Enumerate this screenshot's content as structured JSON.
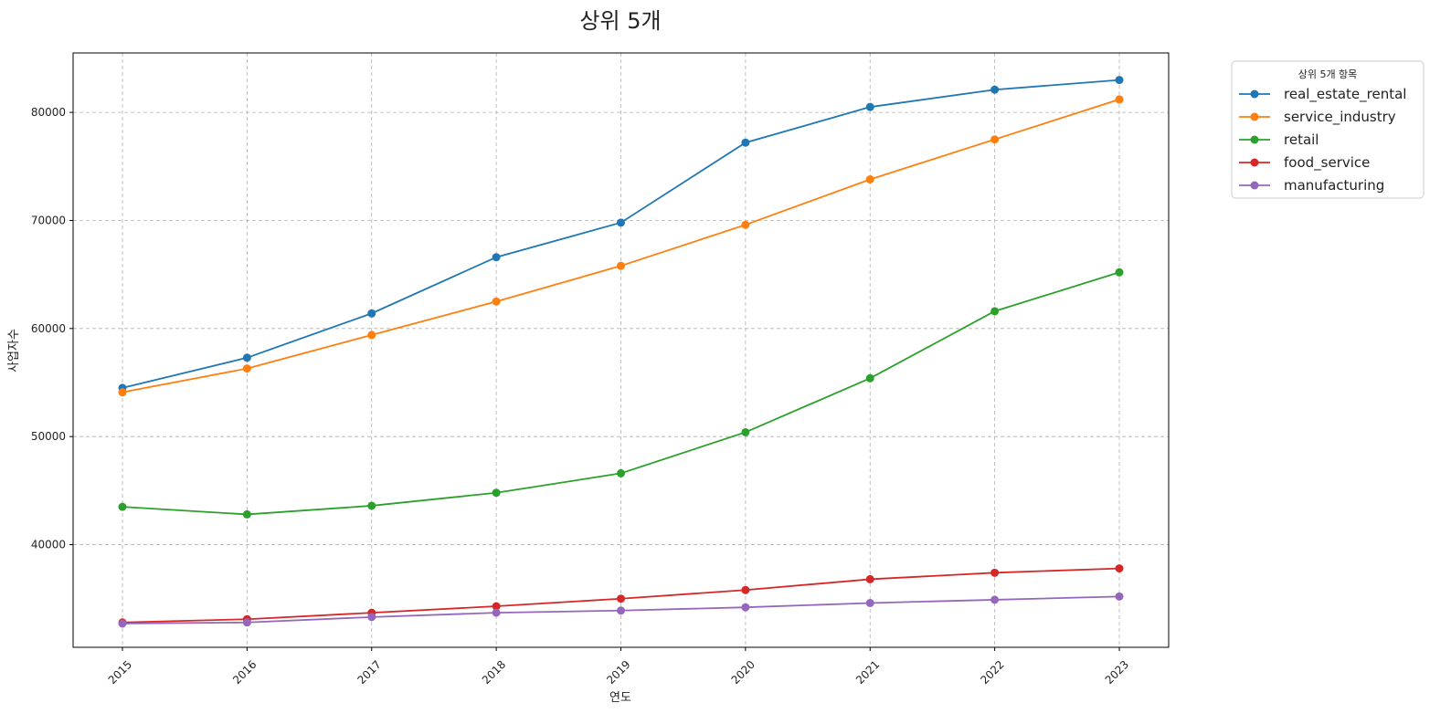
{
  "chart_data": {
    "type": "line",
    "title": "상위 5개",
    "xlabel": "연도",
    "ylabel": "사업자수",
    "x": [
      "2015",
      "2016",
      "2017",
      "2018",
      "2019",
      "2020",
      "2021",
      "2022",
      "2023"
    ],
    "yticks": [
      40000,
      50000,
      60000,
      70000,
      80000
    ],
    "ylim": [
      30500,
      85500
    ],
    "grid": true,
    "legend": {
      "title": "상위 5개 항목",
      "position": "outside-right"
    },
    "series": [
      {
        "name": "real_estate_rental",
        "color": "#1f77b4",
        "values": [
          54500,
          57300,
          61400,
          66600,
          69800,
          77200,
          80500,
          82100,
          83000
        ]
      },
      {
        "name": "service_industry",
        "color": "#ff7f0e",
        "values": [
          54100,
          56300,
          59400,
          62500,
          65800,
          69600,
          73800,
          77500,
          81200
        ]
      },
      {
        "name": "retail",
        "color": "#2ca02c",
        "values": [
          43500,
          42800,
          43600,
          44800,
          46600,
          50400,
          55400,
          61600,
          65200
        ]
      },
      {
        "name": "food_service",
        "color": "#d62728",
        "values": [
          32800,
          33100,
          33700,
          34300,
          35000,
          35800,
          36800,
          37400,
          37800
        ]
      },
      {
        "name": "manufacturing",
        "color": "#9467bd",
        "values": [
          32700,
          32800,
          33300,
          33700,
          33900,
          34200,
          34600,
          34900,
          35200
        ]
      }
    ]
  }
}
